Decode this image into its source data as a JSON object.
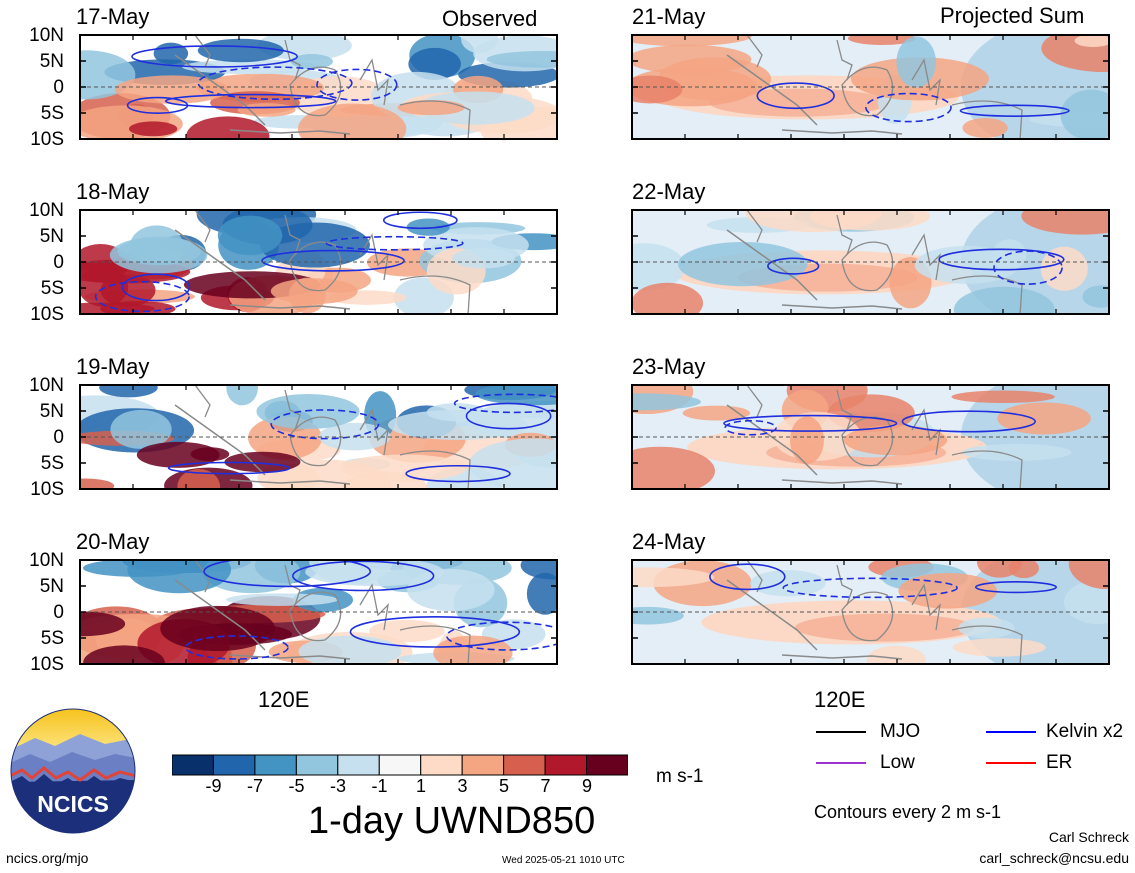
{
  "header": {
    "left_label": "Observed",
    "right_label": "Projected Sum"
  },
  "panels": [
    {
      "date": "17-May",
      "column": "observed"
    },
    {
      "date": "18-May",
      "column": "observed"
    },
    {
      "date": "19-May",
      "column": "observed"
    },
    {
      "date": "20-May",
      "column": "observed"
    },
    {
      "date": "21-May",
      "column": "projected"
    },
    {
      "date": "22-May",
      "column": "projected"
    },
    {
      "date": "23-May",
      "column": "projected"
    },
    {
      "date": "24-May",
      "column": "projected"
    }
  ],
  "lat_labels": [
    "10N",
    "5N",
    "0",
    "5S",
    "10S"
  ],
  "lon_label": "120E",
  "colorbar": {
    "ticks": [
      "-9",
      "-7",
      "-5",
      "-3",
      "-1",
      "1",
      "3",
      "5",
      "7",
      "9"
    ],
    "colors": [
      "#08306b",
      "#2166ac",
      "#4393c3",
      "#92c5de",
      "#c6e0ef",
      "#f7f7f7",
      "#fddbc7",
      "#f4a582",
      "#d6604d",
      "#b2182b",
      "#67001f"
    ],
    "units": "m s-1"
  },
  "variable_title": "1-day UWND850",
  "legend": {
    "items": [
      {
        "label": "MJO",
        "color": "#000000"
      },
      {
        "label": "Kelvin x2",
        "color": "#0000ff"
      },
      {
        "label": "Low",
        "color": "#9933cc"
      },
      {
        "label": "ER",
        "color": "#ff0000"
      }
    ],
    "contour_note": "Contours every 2 m s-1"
  },
  "logo": {
    "text": "NCICS"
  },
  "footer": {
    "url": "ncics.org/mjo",
    "timestamp": "Wed 2025-05-21 1010 UTC",
    "author": "Carl Schreck",
    "email": "carl_schreck@ncsu.edu"
  }
}
